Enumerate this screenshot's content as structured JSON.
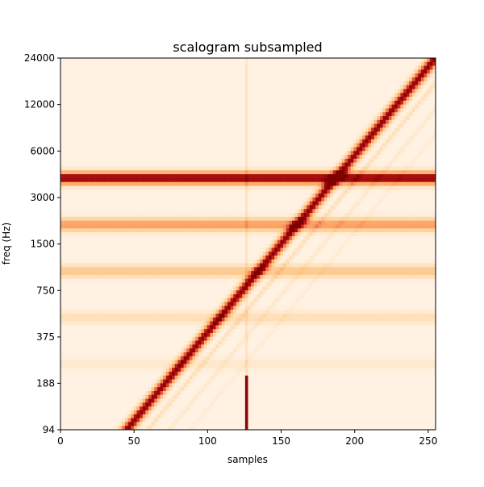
{
  "chart_data": {
    "type": "heatmap",
    "title": "scalogram subsampled",
    "xlabel": "samples",
    "ylabel": "freq (Hz)",
    "xlim": [
      0,
      255
    ],
    "ylim": [
      94,
      24000
    ],
    "yscale": "log2",
    "x_ticks": [
      0,
      50,
      100,
      150,
      200,
      250
    ],
    "y_ticks": [
      94,
      188,
      375,
      750,
      1500,
      3000,
      6000,
      12000,
      24000
    ],
    "colormap": "OrRd",
    "colors": {
      "low": "#fff5eb",
      "mid": "#fdae6b",
      "high": "#b30000",
      "peak": "#7f0000"
    },
    "horizontal_bands": [
      {
        "freq": 4000,
        "intensity": 0.95
      },
      {
        "freq": 2000,
        "intensity": 0.45
      },
      {
        "freq": 1000,
        "intensity": 0.25
      },
      {
        "freq": 500,
        "intensity": 0.12
      },
      {
        "freq": 250,
        "intensity": 0.06
      }
    ],
    "chirp_ridge": [
      {
        "x": 45,
        "freq": 94
      },
      {
        "x": 255,
        "freq": 24000
      }
    ],
    "impulse": {
      "x": 127,
      "freq_low": 94,
      "freq_high": 210
    }
  }
}
